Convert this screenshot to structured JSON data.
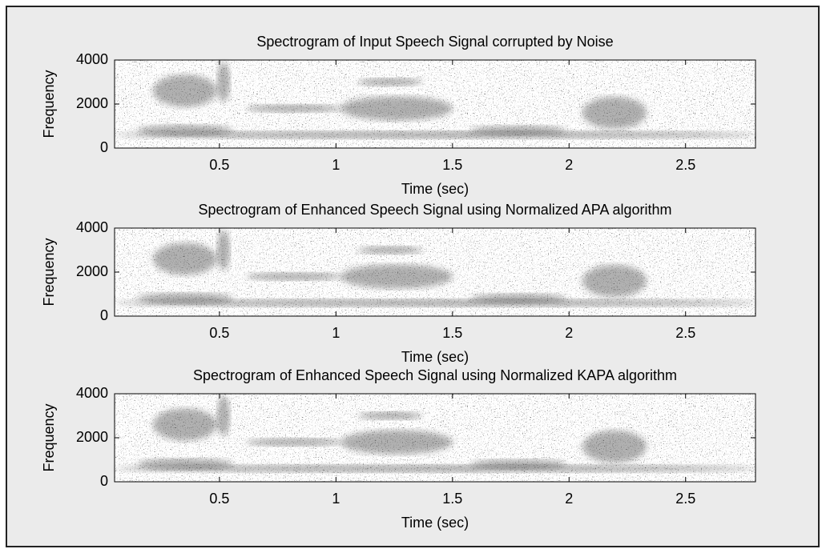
{
  "chart_data": [
    {
      "type": "spectrogram",
      "title": "Spectrogram of Input Speech Signal corrupted by Noise",
      "xlabel": "Time (sec)",
      "ylabel": "Frequency",
      "xlim": [
        0.05,
        2.8
      ],
      "ylim": [
        0,
        4000
      ],
      "xticks": [
        0.5,
        1,
        1.5,
        2,
        2.5
      ],
      "yticks": [
        0,
        2000,
        4000
      ]
    },
    {
      "type": "spectrogram",
      "title": "Spectrogram of Enhanced Speech Signal using Normalized APA algorithm",
      "xlabel": "Time (sec)",
      "ylabel": "Frequency",
      "xlim": [
        0.05,
        2.8
      ],
      "ylim": [
        0,
        4000
      ],
      "xticks": [
        0.5,
        1,
        1.5,
        2,
        2.5
      ],
      "yticks": [
        0,
        2000,
        4000
      ]
    },
    {
      "type": "spectrogram",
      "title": "Spectrogram of Enhanced Speech Signal using Normalized KAPA algorithm",
      "xlabel": "Time (sec)",
      "ylabel": "Frequency",
      "xlim": [
        0.05,
        2.8
      ],
      "ylim": [
        0,
        4000
      ],
      "xticks": [
        0.5,
        1,
        1.5,
        2,
        2.5
      ],
      "yticks": [
        0,
        2000,
        4000
      ]
    }
  ]
}
